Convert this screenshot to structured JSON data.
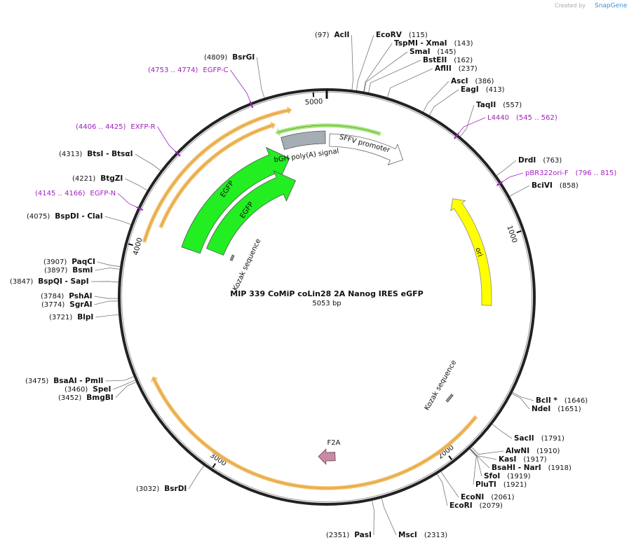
{
  "header": {
    "created_by": "Created by",
    "brand": "SnapGene"
  },
  "map": {
    "title": "MIP 339 CoMiP coLin28 2A Nanog IRES eGFP",
    "length": "5053 bp",
    "ticks": [
      1000,
      2000,
      3000,
      4000,
      5000
    ],
    "enzymes": [
      {
        "name": "AclI",
        "position": "(97)"
      },
      {
        "name": "EcoRV",
        "position": "(115)"
      },
      {
        "name": "TspMI  - XmaI",
        "position": "(143)"
      },
      {
        "name": "SmaI",
        "position": "(145)"
      },
      {
        "name": "BstEII",
        "position": "(162)"
      },
      {
        "name": "AflII",
        "position": "(237)"
      },
      {
        "name": "AscI",
        "position": "(386)"
      },
      {
        "name": "EagI",
        "position": "(413)"
      },
      {
        "name": "TaqII",
        "position": "(557)"
      },
      {
        "name": "DrdI",
        "position": "(763)"
      },
      {
        "name": "BciVI",
        "position": "(858)"
      },
      {
        "name": "BclI *",
        "position": "(1646)"
      },
      {
        "name": "NdeI",
        "position": "(1651)"
      },
      {
        "name": "SacII",
        "position": "(1791)"
      },
      {
        "name": "AlwNI",
        "position": "(1910)"
      },
      {
        "name": "KasI",
        "position": "(1917)"
      },
      {
        "name": "BsaHI  - NarI",
        "position": "(1918)"
      },
      {
        "name": "SfoI",
        "position": "(1919)"
      },
      {
        "name": "PluTI",
        "position": "(1921)"
      },
      {
        "name": "EcoNI",
        "position": "(2061)"
      },
      {
        "name": "EcoRI",
        "position": "(2079)"
      },
      {
        "name": "MscI",
        "position": "(2313)"
      },
      {
        "name": "PasI",
        "position": "(2351)"
      },
      {
        "name": "BsrDI",
        "position": "(3032)"
      },
      {
        "name": "BmgBI",
        "position": "(3452)"
      },
      {
        "name": "SpeI",
        "position": "(3460)"
      },
      {
        "name": "BsaAI  - PmlI",
        "position": "(3475)"
      },
      {
        "name": "BlpI",
        "position": "(3721)"
      },
      {
        "name": "SgrAI",
        "position": "(3774)"
      },
      {
        "name": "PshAI",
        "position": "(3784)"
      },
      {
        "name": "BspQI  - SapI",
        "position": "(3847)"
      },
      {
        "name": "BsmI",
        "position": "(3897)"
      },
      {
        "name": "PaqCI",
        "position": "(3907)"
      },
      {
        "name": "BspDI  - ClaI",
        "position": "(4075)"
      },
      {
        "name": "BtgZI",
        "position": "(4221)"
      },
      {
        "name": "BtsI  - BtsαI",
        "position": "(4313)"
      },
      {
        "name": "BsrGI",
        "position": "(4809)"
      }
    ],
    "primers": [
      {
        "name": "EGFP-C",
        "range": "(4753 .. 4774)"
      },
      {
        "name": "L4440",
        "range": "(545 .. 562)"
      },
      {
        "name": "pBR322ori-F",
        "range": "(796 .. 815)"
      },
      {
        "name": "EXFP-R",
        "range": "(4406 .. 4425)"
      },
      {
        "name": "EGFP-N",
        "range": "(4145 .. 4166)"
      }
    ],
    "features": [
      "ori",
      "EGFP",
      "EGFP",
      "SFFV promoter",
      "bGH poly(A) signal",
      "Kozak sequence",
      "Kozak sequence",
      "F2A"
    ]
  }
}
